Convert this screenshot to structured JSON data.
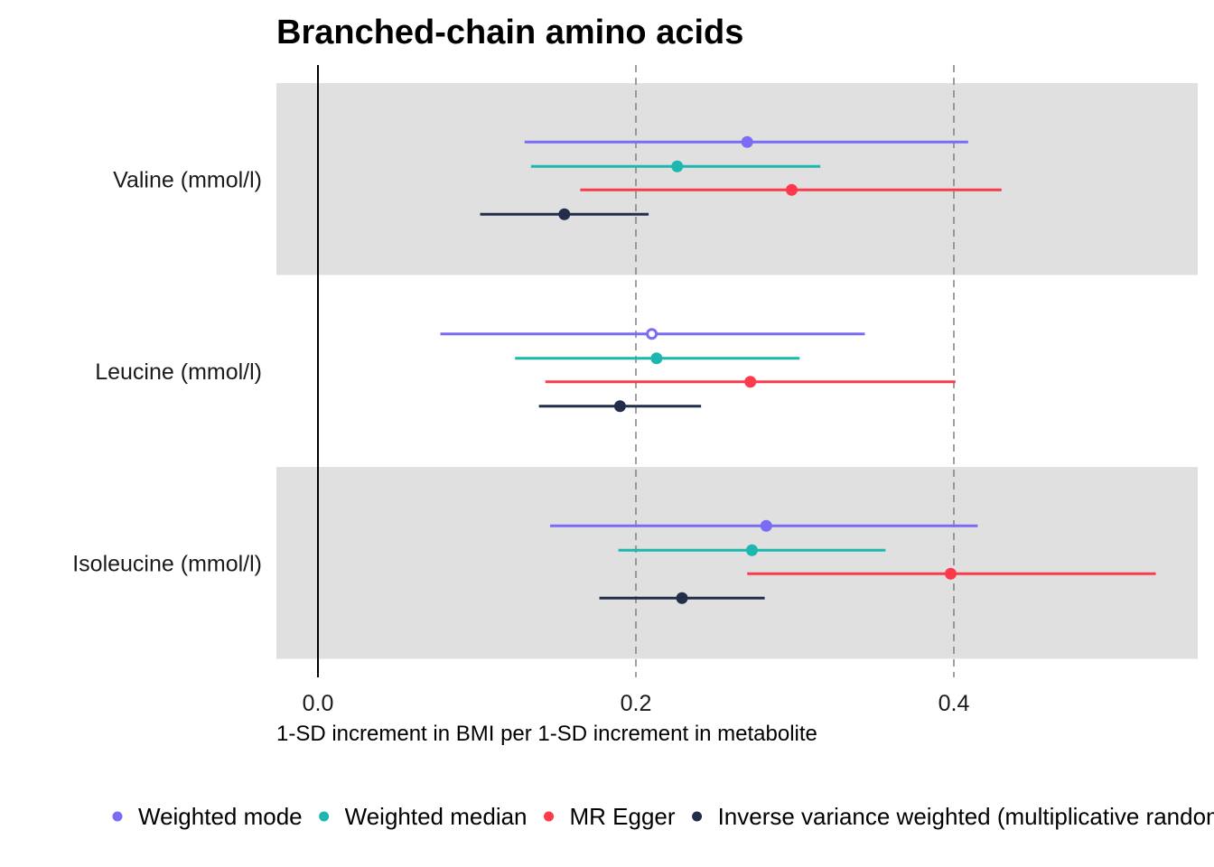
{
  "chart_data": {
    "type": "forest",
    "title": "Branched-chain amino acids",
    "xlabel": "1-SD increment in BMI per 1-SD increment in metabolite",
    "ylabel": "",
    "xlim": [
      -0.026,
      0.555
    ],
    "x_ticks": [
      0.0,
      0.2,
      0.4
    ],
    "x_tick_labels": [
      "0.0",
      "0.2",
      "0.4"
    ],
    "reference_lines": [
      {
        "x": 0.0,
        "style": "solid"
      },
      {
        "x": 0.2,
        "style": "dashed"
      },
      {
        "x": 0.4,
        "style": "dashed"
      }
    ],
    "grid": false,
    "categories": [
      "Valine (mmol/l)",
      "Leucine (mmol/l)",
      "Isoleucine (mmol/l)"
    ],
    "category_band_shading": [
      "#e0e0e0",
      "#ffffff",
      "#e0e0e0"
    ],
    "legend_position": "bottom",
    "series": [
      {
        "name": "Weighted mode",
        "color": "#7b6cf6",
        "points": [
          {
            "estimate": 0.27,
            "lower": 0.13,
            "upper": 0.409,
            "filled": true
          },
          {
            "estimate": 0.21,
            "lower": 0.077,
            "upper": 0.344,
            "filled": false
          },
          {
            "estimate": 0.282,
            "lower": 0.146,
            "upper": 0.415,
            "filled": true
          }
        ]
      },
      {
        "name": "Weighted median",
        "color": "#1db7b0",
        "points": [
          {
            "estimate": 0.226,
            "lower": 0.134,
            "upper": 0.316,
            "filled": true
          },
          {
            "estimate": 0.213,
            "lower": 0.124,
            "upper": 0.303,
            "filled": true
          },
          {
            "estimate": 0.273,
            "lower": 0.189,
            "upper": 0.357,
            "filled": true
          }
        ]
      },
      {
        "name": "MR Egger",
        "color": "#fc3a4c",
        "points": [
          {
            "estimate": 0.298,
            "lower": 0.165,
            "upper": 0.43,
            "filled": true
          },
          {
            "estimate": 0.272,
            "lower": 0.143,
            "upper": 0.401,
            "filled": true
          },
          {
            "estimate": 0.398,
            "lower": 0.27,
            "upper": 0.527,
            "filled": true
          }
        ]
      },
      {
        "name": "Inverse variance weighted (multiplicative random effects)",
        "color": "#232f4a",
        "points": [
          {
            "estimate": 0.155,
            "lower": 0.102,
            "upper": 0.208,
            "filled": true
          },
          {
            "estimate": 0.19,
            "lower": 0.139,
            "upper": 0.241,
            "filled": true
          },
          {
            "estimate": 0.229,
            "lower": 0.177,
            "upper": 0.281,
            "filled": true
          }
        ]
      }
    ]
  }
}
